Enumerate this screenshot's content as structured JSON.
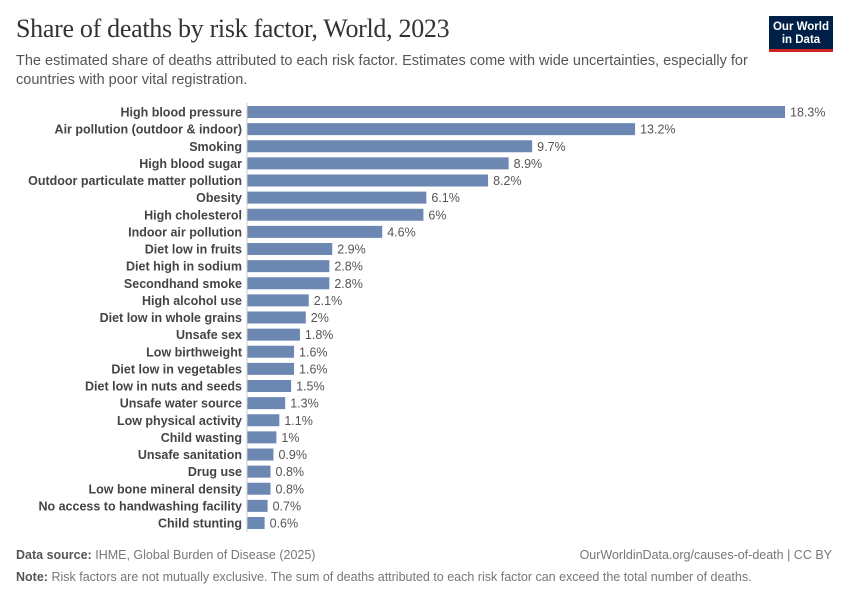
{
  "header": {
    "title": "Share of deaths by risk factor, World, 2023",
    "subtitle": "The estimated share of deaths attributed to each risk factor. Estimates come with wide uncertainties, especially for countries with poor vital registration.",
    "logo": "Our World in Data"
  },
  "footer": {
    "source_label": "Data source:",
    "source": "IHME, Global Burden of Disease (2025)",
    "url": "OurWorldinData.org/causes-of-death | CC BY",
    "note_label": "Note:",
    "note": "Risk factors are not mutually exclusive. The sum of deaths attributed to each risk factor can exceed the total number of deaths."
  },
  "chart_data": {
    "type": "bar",
    "orientation": "horizontal",
    "unit": "%",
    "bar_color": "#6d87b3",
    "categories": [
      "High blood pressure",
      "Air pollution (outdoor & indoor)",
      "Smoking",
      "High blood sugar",
      "Outdoor particulate matter pollution",
      "Obesity",
      "High cholesterol",
      "Indoor air pollution",
      "Diet low in fruits",
      "Diet high in sodium",
      "Secondhand smoke",
      "High alcohol use",
      "Diet low in whole grains",
      "Unsafe sex",
      "Low birthweight",
      "Diet low in vegetables",
      "Diet low in nuts and seeds",
      "Unsafe water source",
      "Low physical activity",
      "Child wasting",
      "Unsafe sanitation",
      "Drug use",
      "Low bone mineral density",
      "No access to handwashing facility",
      "Child stunting"
    ],
    "values": [
      18.3,
      13.2,
      9.7,
      8.9,
      8.2,
      6.1,
      6,
      4.6,
      2.9,
      2.8,
      2.8,
      2.1,
      2,
      1.8,
      1.6,
      1.6,
      1.5,
      1.3,
      1.1,
      1,
      0.9,
      0.8,
      0.8,
      0.7,
      0.6
    ],
    "xlim": [
      0,
      18.3
    ]
  }
}
